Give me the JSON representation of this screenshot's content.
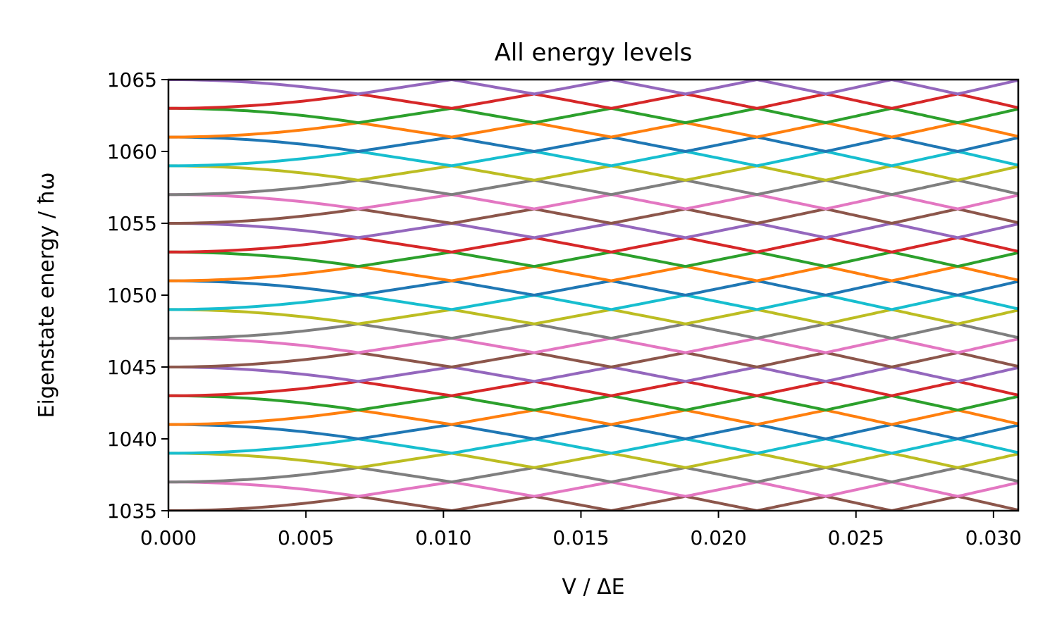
{
  "chart_data": {
    "type": "line",
    "title": "All energy levels",
    "xlabel": "V / ΔE",
    "ylabel": "Eigenstate energy / ħω",
    "xlim": [
      0,
      0.0309
    ],
    "ylim": [
      1035,
      1065
    ],
    "grid": false,
    "xticks": [
      "0.000",
      "0.005",
      "0.010",
      "0.015",
      "0.020",
      "0.025",
      "0.030"
    ],
    "yticks": [
      "1035",
      "1040",
      "1045",
      "1050",
      "1055",
      "1060",
      "1065"
    ],
    "x": [
      0,
      0.0069,
      0.0103,
      0.0133,
      0.0161,
      0.0188,
      0.0214,
      0.0239,
      0.0263,
      0.0287,
      0.031
    ],
    "series": [
      {
        "color": "#8c564b",
        "values": [
          1035,
          1036,
          1035,
          1036,
          1035,
          1036,
          1035,
          1036,
          1035,
          1036,
          1035
        ]
      },
      {
        "color": "#e377c2",
        "values": [
          1037,
          1036,
          1037,
          1036,
          1037,
          1036,
          1037,
          1036,
          1037,
          1036,
          1037
        ]
      },
      {
        "color": "#7f7f7f",
        "values": [
          1037,
          1038,
          1037,
          1038,
          1037,
          1038,
          1037,
          1038,
          1037,
          1038,
          1037
        ]
      },
      {
        "color": "#bcbd22",
        "values": [
          1039,
          1038,
          1039,
          1038,
          1039,
          1038,
          1039,
          1038,
          1039,
          1038,
          1039
        ]
      },
      {
        "color": "#17becf",
        "values": [
          1039,
          1040,
          1039,
          1040,
          1039,
          1040,
          1039,
          1040,
          1039,
          1040,
          1039
        ]
      },
      {
        "color": "#1f77b4",
        "values": [
          1041,
          1040,
          1041,
          1040,
          1041,
          1040,
          1041,
          1040,
          1041,
          1040,
          1041
        ]
      },
      {
        "color": "#ff7f0e",
        "values": [
          1041,
          1042,
          1041,
          1042,
          1041,
          1042,
          1041,
          1042,
          1041,
          1042,
          1041
        ]
      },
      {
        "color": "#2ca02c",
        "values": [
          1043,
          1042,
          1043,
          1042,
          1043,
          1042,
          1043,
          1042,
          1043,
          1042,
          1043
        ]
      },
      {
        "color": "#d62728",
        "values": [
          1043,
          1044,
          1043,
          1044,
          1043,
          1044,
          1043,
          1044,
          1043,
          1044,
          1043
        ]
      },
      {
        "color": "#9467bd",
        "values": [
          1045,
          1044,
          1045,
          1044,
          1045,
          1044,
          1045,
          1044,
          1045,
          1044,
          1045
        ]
      },
      {
        "color": "#8c564b",
        "values": [
          1045,
          1046,
          1045,
          1046,
          1045,
          1046,
          1045,
          1046,
          1045,
          1046,
          1045
        ]
      },
      {
        "color": "#e377c2",
        "values": [
          1047,
          1046,
          1047,
          1046,
          1047,
          1046,
          1047,
          1046,
          1047,
          1046,
          1047
        ]
      },
      {
        "color": "#7f7f7f",
        "values": [
          1047,
          1048,
          1047,
          1048,
          1047,
          1048,
          1047,
          1048,
          1047,
          1048,
          1047
        ]
      },
      {
        "color": "#bcbd22",
        "values": [
          1049,
          1048,
          1049,
          1048,
          1049,
          1048,
          1049,
          1048,
          1049,
          1048,
          1049
        ]
      },
      {
        "color": "#17becf",
        "values": [
          1049,
          1050,
          1049,
          1050,
          1049,
          1050,
          1049,
          1050,
          1049,
          1050,
          1049
        ]
      },
      {
        "color": "#1f77b4",
        "values": [
          1051,
          1050,
          1051,
          1050,
          1051,
          1050,
          1051,
          1050,
          1051,
          1050,
          1051
        ]
      },
      {
        "color": "#ff7f0e",
        "values": [
          1051,
          1052,
          1051,
          1052,
          1051,
          1052,
          1051,
          1052,
          1051,
          1052,
          1051
        ]
      },
      {
        "color": "#2ca02c",
        "values": [
          1053,
          1052,
          1053,
          1052,
          1053,
          1052,
          1053,
          1052,
          1053,
          1052,
          1053
        ]
      },
      {
        "color": "#d62728",
        "values": [
          1053,
          1054,
          1053,
          1054,
          1053,
          1054,
          1053,
          1054,
          1053,
          1054,
          1053
        ]
      },
      {
        "color": "#9467bd",
        "values": [
          1055,
          1054,
          1055,
          1054,
          1055,
          1054,
          1055,
          1054,
          1055,
          1054,
          1055
        ]
      },
      {
        "color": "#8c564b",
        "values": [
          1055,
          1056,
          1055,
          1056,
          1055,
          1056,
          1055,
          1056,
          1055,
          1056,
          1055
        ]
      },
      {
        "color": "#e377c2",
        "values": [
          1057,
          1056,
          1057,
          1056,
          1057,
          1056,
          1057,
          1056,
          1057,
          1056,
          1057
        ]
      },
      {
        "color": "#7f7f7f",
        "values": [
          1057,
          1058,
          1057,
          1058,
          1057,
          1058,
          1057,
          1058,
          1057,
          1058,
          1057
        ]
      },
      {
        "color": "#bcbd22",
        "values": [
          1059,
          1058,
          1059,
          1058,
          1059,
          1058,
          1059,
          1058,
          1059,
          1058,
          1059
        ]
      },
      {
        "color": "#17becf",
        "values": [
          1059,
          1060,
          1059,
          1060,
          1059,
          1060,
          1059,
          1060,
          1059,
          1060,
          1059
        ]
      },
      {
        "color": "#1f77b4",
        "values": [
          1061,
          1060,
          1061,
          1060,
          1061,
          1060,
          1061,
          1060,
          1061,
          1060,
          1061
        ]
      },
      {
        "color": "#ff7f0e",
        "values": [
          1061,
          1062,
          1061,
          1062,
          1061,
          1062,
          1061,
          1062,
          1061,
          1062,
          1061
        ]
      },
      {
        "color": "#2ca02c",
        "values": [
          1063,
          1062,
          1063,
          1062,
          1063,
          1062,
          1063,
          1062,
          1063,
          1062,
          1063
        ]
      },
      {
        "color": "#d62728",
        "values": [
          1063,
          1064,
          1063,
          1064,
          1063,
          1064,
          1063,
          1064,
          1063,
          1064,
          1063
        ]
      },
      {
        "color": "#9467bd",
        "values": [
          1065,
          1064,
          1065,
          1064,
          1065,
          1064,
          1065,
          1064,
          1065,
          1064,
          1065
        ]
      }
    ]
  }
}
